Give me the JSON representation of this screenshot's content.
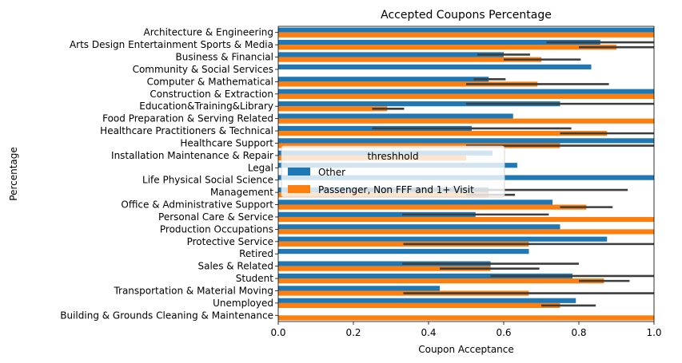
{
  "chart_data": {
    "type": "bar",
    "orientation": "horizontal",
    "title": "Accepted Coupons Percentage",
    "xlabel": "Coupon Acceptance",
    "ylabel": "Percentage",
    "xlim": [
      0,
      1.0
    ],
    "xticks": [
      "0.0",
      "0.2",
      "0.4",
      "0.6",
      "0.8",
      "1.0"
    ],
    "grid": false,
    "legend": {
      "title": "threshhold",
      "placement": "center"
    },
    "categories": [
      "Architecture & Engineering",
      "Arts Design Entertainment Sports & Media",
      "Business & Financial",
      "Community & Social Services",
      "Computer & Mathematical",
      "Construction & Extraction",
      "Education&Training&Library",
      "Food Preparation & Serving Related",
      "Healthcare Practitioners & Technical",
      "Healthcare Support",
      "Installation Maintenance & Repair",
      "Legal",
      "Life Physical Social Science",
      "Management",
      "Office & Administrative Support",
      "Personal Care & Service",
      "Production Occupations",
      "Protective Service",
      "Retired",
      "Sales & Related",
      "Student",
      "Transportation & Material Moving",
      "Unemployed",
      "Building & Grounds Cleaning & Maintenance"
    ],
    "series": [
      {
        "name": "Other",
        "color": "#1f77b4",
        "values": [
          1.0,
          0.857,
          0.6,
          0.833,
          0.56,
          1.0,
          0.75,
          0.625,
          0.515,
          1.0,
          0.57,
          0.636,
          1.0,
          0.56,
          0.73,
          0.525,
          0.75,
          0.875,
          0.667,
          0.565,
          0.783,
          0.43,
          0.792,
          null
        ],
        "ci": [
          null,
          [
            0.714,
            1.0
          ],
          [
            0.53,
            0.67
          ],
          null,
          [
            0.52,
            0.605
          ],
          null,
          [
            0.5,
            1.0
          ],
          null,
          [
            0.25,
            0.78
          ],
          null,
          null,
          null,
          null,
          [
            0.2,
            0.93
          ],
          null,
          [
            0.33,
            0.72
          ],
          null,
          null,
          null,
          [
            0.33,
            0.8
          ],
          [
            0.565,
            1.0
          ],
          null,
          null,
          null
        ]
      },
      {
        "name": "Passenger, Non FFF and 1+ Visit",
        "color": "#ff7f0e",
        "values": [
          1.0,
          0.9,
          0.7,
          null,
          0.69,
          1.0,
          0.29,
          1.0,
          0.875,
          0.75,
          0.5,
          null,
          null,
          0.56,
          0.82,
          1.0,
          1.0,
          0.667,
          null,
          0.565,
          0.867,
          0.667,
          0.75,
          1.0
        ],
        "ci": [
          null,
          [
            0.8,
            1.0
          ],
          [
            0.6,
            0.805
          ],
          null,
          [
            0.5,
            0.88
          ],
          null,
          [
            0.25,
            0.335
          ],
          null,
          [
            0.75,
            1.0
          ],
          [
            0.5,
            1.0
          ],
          null,
          null,
          null,
          [
            0.5,
            0.63
          ],
          [
            0.75,
            0.89
          ],
          null,
          null,
          [
            0.333,
            1.0
          ],
          null,
          [
            0.43,
            0.695
          ],
          [
            0.8,
            0.935
          ],
          [
            0.333,
            1.0
          ],
          [
            0.7,
            0.845
          ],
          null
        ]
      }
    ]
  }
}
